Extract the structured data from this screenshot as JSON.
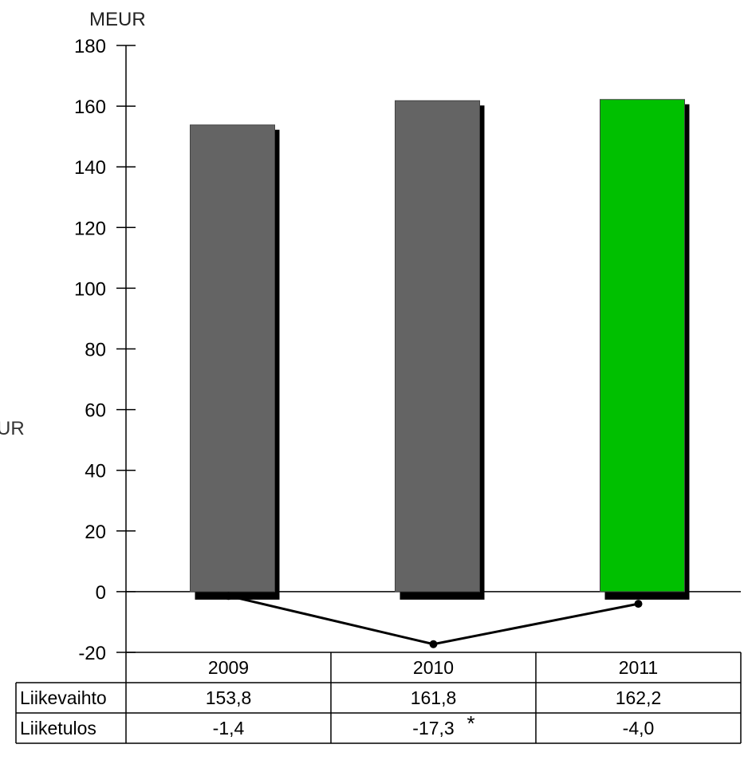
{
  "chart_data": {
    "type": "bar",
    "unit_label": "MEUR",
    "left_cut_label": "UR",
    "ylim": [
      -20,
      180
    ],
    "yticks": [
      -20,
      0,
      20,
      40,
      60,
      80,
      100,
      120,
      140,
      160,
      180
    ],
    "grid": false,
    "categories": [
      "2009",
      "2010",
      "2011"
    ],
    "series": [
      {
        "name": "Liikevaihto",
        "kind": "bar",
        "values": [
          153.8,
          161.8,
          162.2
        ],
        "colors": [
          "#646464",
          "#646464",
          "#00c000"
        ],
        "labels": [
          "153,8",
          "161,8",
          "162,2"
        ]
      },
      {
        "name": "Liiketulos",
        "kind": "line",
        "values": [
          -1.4,
          -17.3,
          -4.0
        ],
        "color": "#000000",
        "labels": [
          "-1,4",
          "-17,3",
          "-4,0"
        ],
        "annotation": {
          "category": "2010",
          "text": "*"
        }
      }
    ],
    "legend": "data-table-below"
  }
}
